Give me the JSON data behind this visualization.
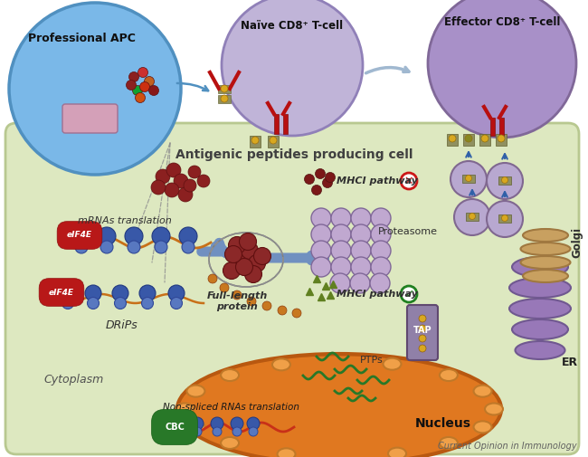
{
  "title": "Antigenic peptides producing cell",
  "cell_bg": "#dde8c0",
  "cell_border": "#b8c890",
  "apc_color": "#7ab8e8",
  "apc_edge": "#5090c0",
  "naive_color": "#c0b4d8",
  "naive_edge": "#9080b8",
  "effector_color": "#a890c8",
  "effector_edge": "#806898",
  "nucleus_fill": "#e07820",
  "nucleus_edge": "#b85810",
  "nucleus_inner": "#e89838",
  "er_color": "#9878b8",
  "er_edge": "#705890",
  "golgi_color": "#c8a060",
  "golgi_edge": "#a07840",
  "vesicle_color": "#b8a8d0",
  "vesicle_edge": "#806890",
  "proteasome_color": "#c0a8d0",
  "proteasome_edge": "#806898",
  "tap_color": "#9080a8",
  "tap_edge": "#604870",
  "fullprot_color": "#8b2828",
  "peptide_dark": "#7b1818",
  "peptide_orange": "#c87820",
  "peptide_green": "#287828",
  "mhc_body": "#909060",
  "mhc_dot_yellow": "#d8a820",
  "mhc_dot_olive": "#888820",
  "ribosome_large": "#3858a8",
  "ribosome_small": "#5878c0",
  "mrna_color": "#c87018",
  "eif4e_bg": "#b81818",
  "cbc_bg": "#287828",
  "arrow_blue": "#3060a8",
  "arrow_gray": "#888888",
  "tcr_color": "#b81010",
  "caption": "Current Opinion in Immunology",
  "label_apc": "Professional APC",
  "label_naive": "Naïve CD8⁺ T-cell",
  "label_effector": "Effector CD8⁺ T-cell",
  "label_title": "Antigenic peptides producing cell",
  "label_mrna": "mRNAs translation",
  "label_drips": "DRiPs",
  "label_fullprot": "Full-length\nprotein",
  "label_proteasome": "Proteasome",
  "label_mhci_bad": "MHCI pathway",
  "label_mhci_good": "MHCI pathway",
  "label_cytoplasm": "Cytoplasm",
  "label_nucleus": "Nucleus",
  "label_nonspliced": "Non-spliced RNAs translation",
  "label_ptps": "PTPs",
  "label_tap": "TAP",
  "label_er": "ER",
  "label_golgi": "Golgi"
}
